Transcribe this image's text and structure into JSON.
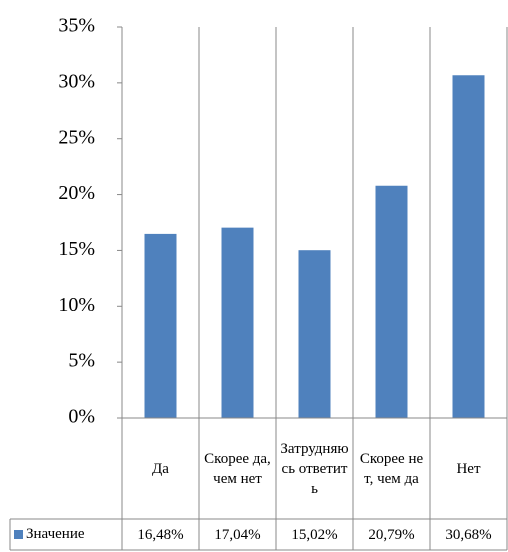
{
  "chart_data": {
    "type": "bar",
    "categories": [
      "Да",
      "Скорее да, чем нет",
      "Затрудняюсь ответить",
      "Скорее нет, чем да",
      "Нет"
    ],
    "series": [
      {
        "name": "Значение",
        "color": "#4f81bd",
        "values": [
          16.48,
          17.04,
          15.02,
          20.79,
          30.68
        ],
        "value_labels": [
          "16,48%",
          "17,04%",
          "15,02%",
          "20,79%",
          "30,68%"
        ]
      }
    ],
    "ylim": [
      0,
      35
    ],
    "yticks": [
      {
        "value": 0,
        "label": "0%"
      },
      {
        "value": 5,
        "label": "5%"
      },
      {
        "value": 10,
        "label": "10%"
      },
      {
        "value": 15,
        "label": "15%"
      },
      {
        "value": 20,
        "label": "20%"
      },
      {
        "value": 25,
        "label": "25%"
      },
      {
        "value": 30,
        "label": "30%"
      },
      {
        "value": 35,
        "label": "35%"
      }
    ],
    "grid": false
  }
}
